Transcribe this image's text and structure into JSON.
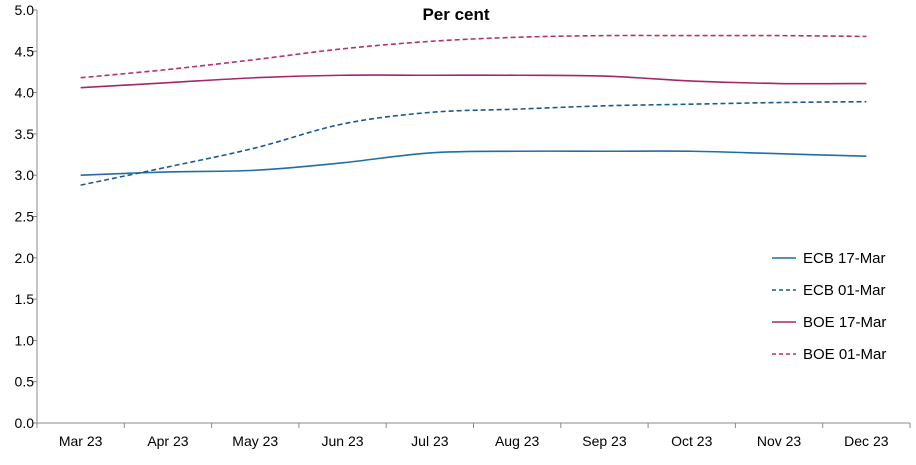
{
  "chart_data": {
    "type": "line",
    "title": "Per cent",
    "xlabel": "",
    "ylabel": "",
    "categories": [
      "Mar 23",
      "Apr 23",
      "May 23",
      "Jun 23",
      "Jul 23",
      "Aug 23",
      "Sep 23",
      "Oct 23",
      "Nov 23",
      "Dec 23"
    ],
    "y_ticks": [
      "0.0",
      "0.5",
      "1.0",
      "1.5",
      "2.0",
      "2.5",
      "3.0",
      "3.5",
      "4.0",
      "4.5",
      "5.0"
    ],
    "ylim": [
      0,
      5
    ],
    "grid": false,
    "legend_position": "right",
    "series": [
      {
        "name": "ECB 17-Mar",
        "color": "#1f6fa6",
        "dash": "solid",
        "values": [
          3.0,
          3.04,
          3.06,
          3.15,
          3.27,
          3.29,
          3.29,
          3.29,
          3.26,
          3.23
        ]
      },
      {
        "name": "ECB 01-Mar",
        "color": "#1b5a8c",
        "dash": "dashed",
        "values": [
          2.88,
          3.1,
          3.33,
          3.62,
          3.76,
          3.8,
          3.84,
          3.86,
          3.88,
          3.89
        ]
      },
      {
        "name": "BOE 17-Mar",
        "color": "#a3286a",
        "dash": "solid",
        "values": [
          4.06,
          4.12,
          4.18,
          4.21,
          4.21,
          4.21,
          4.2,
          4.14,
          4.11,
          4.11
        ]
      },
      {
        "name": "BOE 01-Mar",
        "color": "#b5306f",
        "dash": "dashed",
        "values": [
          4.18,
          4.28,
          4.4,
          4.53,
          4.62,
          4.67,
          4.69,
          4.69,
          4.69,
          4.68
        ]
      }
    ]
  }
}
